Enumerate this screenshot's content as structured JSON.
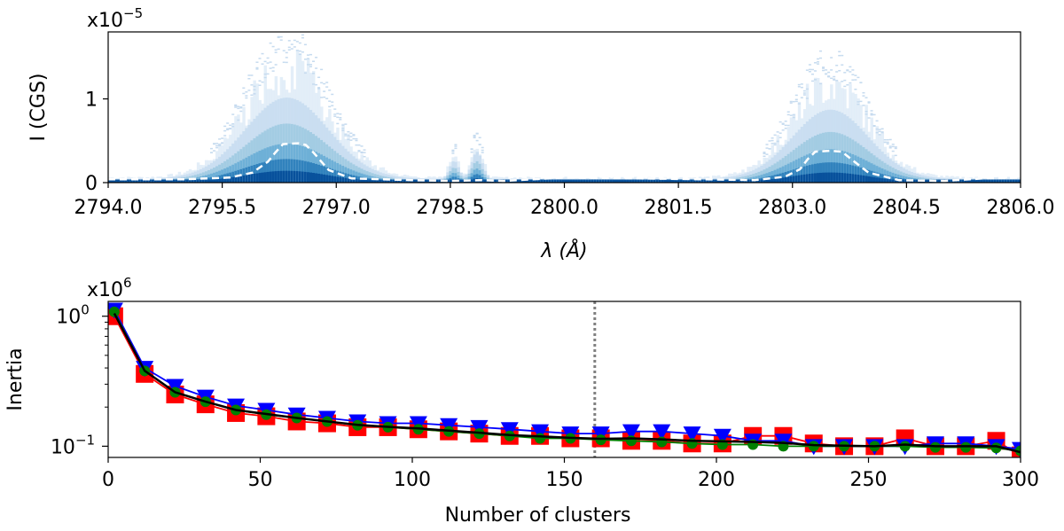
{
  "chart_data": [
    {
      "type": "heatmap",
      "panel": "top",
      "xlabel": "λ (Å)",
      "ylabel": "I (CGS)",
      "y_multiplier": "x10",
      "y_multiplier_exp": "−5",
      "xlim": [
        2794.0,
        2806.0
      ],
      "ylim": [
        0,
        1.8
      ],
      "x_ticks": [
        2794.0,
        2795.5,
        2797.0,
        2798.5,
        2800.0,
        2801.5,
        2803.0,
        2804.5,
        2806.0
      ],
      "x_tick_labels": [
        "2794.0",
        "2795.5",
        "2797.0",
        "2798.5",
        "2800.0",
        "2801.5",
        "2803.0",
        "2804.5",
        "2806.0"
      ],
      "y_ticks": [
        0,
        1
      ],
      "y_tick_labels": [
        "0",
        "1"
      ],
      "density_lines": [
        {
          "center": 2796.35,
          "width": 0.55,
          "peak": 1.35
        },
        {
          "center": 2803.5,
          "width": 0.5,
          "peak": 1.15
        },
        {
          "center": 2798.55,
          "width": 0.06,
          "peak": 0.3
        },
        {
          "center": 2798.85,
          "width": 0.07,
          "peak": 0.45
        }
      ],
      "continuum": 0.06,
      "mean_profile": {
        "name": "mean spectrum",
        "style": "white dashed",
        "x": [
          2794.0,
          2795.0,
          2795.6,
          2795.9,
          2796.1,
          2796.2,
          2796.3,
          2796.5,
          2796.6,
          2796.7,
          2796.9,
          2797.2,
          2798.0,
          2798.5,
          2798.9,
          2799.2,
          2800.0,
          2801.0,
          2801.8,
          2802.5,
          2802.9,
          2803.1,
          2803.2,
          2803.3,
          2803.5,
          2803.65,
          2803.8,
          2804.0,
          2804.4,
          2805.0,
          2805.5,
          2806.0
        ],
        "y": [
          0.04,
          0.04,
          0.06,
          0.12,
          0.25,
          0.36,
          0.46,
          0.47,
          0.45,
          0.36,
          0.15,
          0.05,
          0.03,
          0.02,
          0.03,
          0.02,
          0.06,
          0.05,
          0.04,
          0.03,
          0.07,
          0.16,
          0.28,
          0.37,
          0.38,
          0.37,
          0.26,
          0.12,
          0.03,
          0.02,
          0.05,
          0.06
        ]
      }
    },
    {
      "type": "line",
      "panel": "bottom",
      "xlabel": "Number of clusters",
      "ylabel": "Inertia",
      "y_scale": "log",
      "y_multiplier": "x10",
      "y_multiplier_exp": "6",
      "xlim": [
        0,
        300
      ],
      "ylim": [
        0.082,
        1.3
      ],
      "x_ticks": [
        0,
        50,
        100,
        150,
        200,
        250,
        300
      ],
      "x_tick_labels": [
        "0",
        "50",
        "100",
        "150",
        "200",
        "250",
        "300"
      ],
      "y_major_ticks": [
        0.1,
        1.0
      ],
      "y_tick_labels": [
        "10",
        "10"
      ],
      "y_tick_exps": [
        "−1",
        "0"
      ],
      "y_minor_ticks": [
        0.2,
        0.3,
        0.4,
        0.5,
        0.6,
        0.7,
        0.8,
        0.9
      ],
      "vline": {
        "x": 160,
        "style": "gray dotted"
      },
      "x": [
        2,
        12,
        22,
        32,
        42,
        52,
        62,
        72,
        82,
        92,
        102,
        112,
        122,
        132,
        142,
        152,
        162,
        172,
        182,
        192,
        202,
        212,
        222,
        232,
        242,
        252,
        262,
        272,
        282,
        292,
        300
      ],
      "series": [
        {
          "name": "red squares",
          "color": "#ff0000",
          "marker": "square",
          "values": [
            1.0,
            0.36,
            0.25,
            0.21,
            0.18,
            0.17,
            0.155,
            0.15,
            0.14,
            0.14,
            0.135,
            0.13,
            0.125,
            0.12,
            0.12,
            0.115,
            0.115,
            0.11,
            0.11,
            0.105,
            0.105,
            0.12,
            0.12,
            0.105,
            0.1,
            0.1,
            0.115,
            0.1,
            0.1,
            0.11,
            0.085
          ]
        },
        {
          "name": "blue triangles",
          "color": "#0000ff",
          "marker": "triangle-down",
          "values": [
            1.12,
            0.4,
            0.29,
            0.24,
            0.205,
            0.19,
            0.175,
            0.165,
            0.155,
            0.15,
            0.15,
            0.145,
            0.14,
            0.135,
            0.13,
            0.125,
            0.125,
            0.13,
            0.13,
            0.125,
            0.12,
            0.11,
            0.11,
            0.1,
            0.1,
            0.1,
            0.1,
            0.105,
            0.105,
            0.1,
            0.095
          ]
        },
        {
          "name": "green circles",
          "color": "#008000",
          "marker": "circle",
          "values": [
            1.08,
            0.38,
            0.26,
            0.22,
            0.19,
            0.175,
            0.165,
            0.155,
            0.145,
            0.14,
            0.135,
            0.13,
            0.125,
            0.12,
            0.115,
            0.115,
            0.112,
            0.11,
            0.108,
            0.105,
            0.103,
            0.103,
            0.1,
            0.1,
            0.1,
            0.1,
            0.1,
            0.098,
            0.098,
            0.097,
            0.092
          ]
        },
        {
          "name": "mean",
          "color": "#000000",
          "marker": "none",
          "values": [
            1.05,
            0.38,
            0.26,
            0.22,
            0.19,
            0.177,
            0.165,
            0.155,
            0.146,
            0.141,
            0.137,
            0.132,
            0.127,
            0.122,
            0.119,
            0.116,
            0.114,
            0.115,
            0.113,
            0.11,
            0.109,
            0.108,
            0.106,
            0.102,
            0.101,
            0.1,
            0.103,
            0.1,
            0.1,
            0.1,
            0.09
          ]
        }
      ]
    }
  ]
}
